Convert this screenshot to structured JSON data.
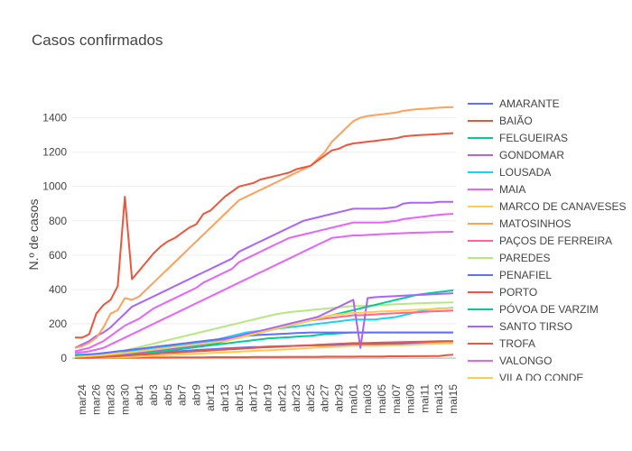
{
  "chart_data": {
    "type": "line",
    "title": "Casos confirmados",
    "xlabel": "",
    "ylabel": "N.º de casos",
    "ylim": [
      -120,
      1560
    ],
    "yticks": [
      0,
      200,
      400,
      600,
      800,
      1000,
      1200,
      1400
    ],
    "x": [
      "mar23",
      "mar24",
      "mar25",
      "mar26",
      "mar27",
      "mar28",
      "mar29",
      "mar30",
      "mar31",
      "abr1",
      "abr2",
      "abr3",
      "abr4",
      "abr5",
      "abr6",
      "abr7",
      "abr8",
      "abr9",
      "abr10",
      "abr11",
      "abr12",
      "abr13",
      "abr14",
      "abr15",
      "abr16",
      "abr17",
      "abr18",
      "abr19",
      "abr20",
      "abr21",
      "abr22",
      "abr23",
      "abr24",
      "abr25",
      "abr26",
      "abr27",
      "abr28",
      "abr29",
      "abr30",
      "mai01",
      "mai02",
      "mai03",
      "mai04",
      "mai05",
      "mai06",
      "mai07",
      "mai08",
      "mai09",
      "mai10",
      "mai11",
      "mai12",
      "mai13",
      "mai14",
      "mai15"
    ],
    "xticks": [
      "mar24",
      "mar26",
      "mar28",
      "mar30",
      "abr1",
      "abr3",
      "abr5",
      "abr7",
      "abr9",
      "abr11",
      "abr13",
      "abr15",
      "abr17",
      "abr19",
      "abr21",
      "abr23",
      "abr25",
      "abr27",
      "abr29",
      "mai01",
      "mai03",
      "mai05",
      "mai07",
      "mai09",
      "mai11",
      "mai13",
      "mai15"
    ],
    "legend_position": "right",
    "series": [
      {
        "name": "AMARANTE",
        "color": "#636efa",
        "values": [
          5,
          5,
          6,
          8,
          10,
          12,
          15,
          20,
          25,
          28,
          30,
          33,
          36,
          38,
          40,
          42,
          45,
          48,
          50,
          52,
          55,
          57,
          59,
          61,
          63,
          65,
          66,
          68,
          69,
          70,
          71,
          72,
          73,
          74,
          75,
          76,
          77,
          78,
          79,
          80,
          80,
          81,
          82,
          82,
          83,
          84,
          85,
          86,
          86,
          87,
          87,
          88,
          88,
          88
        ]
      },
      {
        "name": "BAIÃO",
        "color": "#ef553b",
        "values": [
          1,
          1,
          1,
          1,
          2,
          2,
          2,
          3,
          3,
          3,
          4,
          4,
          4,
          4,
          5,
          5,
          5,
          5,
          5,
          6,
          6,
          6,
          6,
          6,
          6,
          7,
          7,
          7,
          7,
          7,
          8,
          8,
          8,
          8,
          8,
          9,
          9,
          9,
          9,
          9,
          10,
          10,
          10,
          10,
          11,
          11,
          11,
          12,
          12,
          12,
          13,
          13,
          18,
          20
        ]
      },
      {
        "name": "FELGUEIRAS",
        "color": "#00cc96",
        "values": [
          10,
          12,
          14,
          16,
          18,
          20,
          22,
          25,
          28,
          30,
          33,
          36,
          40,
          45,
          50,
          55,
          60,
          65,
          70,
          75,
          80,
          85,
          90,
          95,
          100,
          105,
          110,
          115,
          118,
          120,
          122,
          125,
          128,
          130,
          135,
          140,
          142,
          145,
          148,
          150,
          150,
          150,
          150,
          150,
          150,
          150,
          150,
          150,
          150,
          150,
          150,
          150,
          150,
          150
        ]
      },
      {
        "name": "GONDOMAR",
        "color": "#ab63fa",
        "values": [
          60,
          80,
          100,
          130,
          150,
          180,
          220,
          260,
          300,
          320,
          340,
          360,
          380,
          400,
          420,
          440,
          460,
          480,
          500,
          520,
          540,
          560,
          580,
          620,
          640,
          660,
          680,
          700,
          720,
          740,
          760,
          780,
          800,
          810,
          820,
          830,
          840,
          850,
          860,
          870,
          870,
          870,
          870,
          870,
          875,
          880,
          900,
          905,
          905,
          905,
          905,
          910,
          910,
          910
        ]
      },
      {
        "name": "LOUSADA",
        "color": "#19d3f3",
        "values": [
          20,
          22,
          24,
          26,
          28,
          30,
          33,
          36,
          40,
          45,
          50,
          55,
          60,
          65,
          70,
          75,
          80,
          85,
          90,
          100,
          110,
          120,
          130,
          140,
          150,
          155,
          160,
          165,
          170,
          175,
          180,
          185,
          190,
          195,
          200,
          205,
          210,
          215,
          220,
          225,
          225,
          225,
          225,
          230,
          235,
          240,
          250,
          260,
          270,
          280,
          285,
          290,
          290,
          295
        ]
      },
      {
        "name": "MAIA",
        "color": "#e763fa",
        "values": [
          40,
          50,
          60,
          80,
          100,
          130,
          160,
          190,
          210,
          230,
          260,
          290,
          310,
          330,
          350,
          370,
          390,
          410,
          440,
          460,
          480,
          500,
          520,
          560,
          580,
          600,
          620,
          640,
          660,
          680,
          700,
          710,
          720,
          730,
          740,
          750,
          760,
          770,
          780,
          790,
          790,
          790,
          790,
          790,
          795,
          800,
          810,
          815,
          820,
          825,
          830,
          835,
          838,
          840
        ]
      },
      {
        "name": "MARCO DE CANAVESES",
        "color": "#fecb52",
        "values": [
          2,
          2,
          3,
          3,
          4,
          4,
          5,
          6,
          8,
          10,
          12,
          14,
          16,
          18,
          20,
          22,
          24,
          26,
          28,
          30,
          32,
          34,
          36,
          38,
          40,
          42,
          44,
          46,
          48,
          50,
          52,
          55,
          58,
          60,
          62,
          64,
          66,
          68,
          70,
          72,
          72,
          72,
          72,
          73,
          74,
          75,
          76,
          78,
          80,
          82,
          84,
          85,
          86,
          87
        ]
      },
      {
        "name": "MATOSINHOS",
        "color": "#ffa15a",
        "values": [
          60,
          70,
          90,
          120,
          180,
          260,
          280,
          350,
          340,
          360,
          400,
          440,
          480,
          520,
          560,
          600,
          640,
          680,
          720,
          760,
          800,
          840,
          880,
          920,
          940,
          960,
          980,
          1000,
          1020,
          1040,
          1060,
          1080,
          1100,
          1120,
          1160,
          1200,
          1260,
          1300,
          1340,
          1380,
          1400,
          1410,
          1415,
          1420,
          1425,
          1430,
          1440,
          1445,
          1450,
          1452,
          1455,
          1458,
          1460,
          1462
        ]
      },
      {
        "name": "PAÇOS DE FERREIRA",
        "color": "#ff6692",
        "values": [
          3,
          4,
          5,
          6,
          8,
          10,
          12,
          15,
          20,
          25,
          30,
          35,
          40,
          45,
          50,
          55,
          60,
          65,
          70,
          80,
          90,
          100,
          110,
          120,
          130,
          140,
          150,
          160,
          170,
          180,
          190,
          200,
          210,
          220,
          225,
          230,
          235,
          240,
          245,
          250,
          250,
          252,
          255,
          258,
          260,
          262,
          264,
          266,
          268,
          270,
          272,
          274,
          276,
          278
        ]
      },
      {
        "name": "PAREDES",
        "color": "#b6e880",
        "values": [
          10,
          12,
          15,
          20,
          25,
          30,
          35,
          45,
          55,
          65,
          75,
          85,
          95,
          105,
          115,
          125,
          135,
          145,
          155,
          165,
          175,
          185,
          195,
          205,
          215,
          225,
          235,
          245,
          255,
          262,
          268,
          272,
          276,
          280,
          284,
          288,
          292,
          296,
          300,
          304,
          304,
          306,
          308,
          310,
          312,
          314,
          316,
          318,
          320,
          321,
          322,
          323,
          324,
          325
        ]
      },
      {
        "name": "PENAFIEL",
        "color": "#636efa",
        "values": [
          15,
          18,
          20,
          25,
          30,
          35,
          40,
          45,
          50,
          55,
          60,
          65,
          70,
          75,
          80,
          85,
          90,
          95,
          100,
          105,
          110,
          115,
          120,
          125,
          130,
          133,
          136,
          138,
          140,
          142,
          144,
          146,
          148,
          150,
          150,
          150,
          150,
          150,
          150,
          150,
          150,
          150,
          150,
          150,
          150,
          150,
          150,
          150,
          150,
          150,
          150,
          150,
          150,
          150
        ]
      },
      {
        "name": "PORTO",
        "color": "#ef553b",
        "values": [
          120,
          120,
          140,
          260,
          310,
          340,
          420,
          940,
          460,
          510,
          560,
          610,
          650,
          680,
          700,
          730,
          760,
          780,
          840,
          860,
          900,
          940,
          970,
          1000,
          1010,
          1020,
          1040,
          1050,
          1060,
          1070,
          1080,
          1100,
          1110,
          1120,
          1150,
          1180,
          1210,
          1220,
          1240,
          1250,
          1255,
          1260,
          1265,
          1270,
          1275,
          1280,
          1290,
          1295,
          1298,
          1300,
          1302,
          1305,
          1308,
          1310
        ]
      },
      {
        "name": "PÓVOA DE VARZIM",
        "color": "#00cc96",
        "values": [
          10,
          12,
          14,
          16,
          18,
          20,
          22,
          25,
          28,
          30,
          33,
          36,
          40,
          45,
          50,
          55,
          60,
          65,
          70,
          80,
          90,
          100,
          110,
          120,
          130,
          140,
          150,
          160,
          170,
          180,
          190,
          200,
          210,
          220,
          230,
          240,
          250,
          260,
          270,
          280,
          290,
          300,
          310,
          320,
          330,
          340,
          350,
          360,
          370,
          375,
          380,
          385,
          390,
          395
        ]
      },
      {
        "name": "SANTO TIRSO",
        "color": "#ab63fa",
        "values": [
          5,
          6,
          8,
          10,
          12,
          15,
          20,
          25,
          30,
          35,
          40,
          45,
          50,
          55,
          60,
          65,
          70,
          75,
          80,
          90,
          100,
          110,
          120,
          130,
          140,
          150,
          160,
          170,
          180,
          190,
          200,
          210,
          220,
          230,
          240,
          260,
          280,
          300,
          320,
          340,
          60,
          350,
          355,
          358,
          360,
          362,
          364,
          366,
          368,
          370,
          372,
          374,
          376,
          378
        ]
      },
      {
        "name": "TROFA",
        "color": "#ef553b",
        "values": [
          3,
          4,
          5,
          6,
          8,
          10,
          12,
          15,
          18,
          20,
          22,
          25,
          28,
          30,
          32,
          35,
          38,
          40,
          42,
          45,
          48,
          50,
          52,
          55,
          58,
          60,
          62,
          64,
          66,
          68,
          70,
          72,
          74,
          76,
          78,
          80,
          82,
          84,
          86,
          88,
          88,
          89,
          90,
          91,
          92,
          93,
          94,
          95,
          96,
          97,
          98,
          99,
          100,
          100
        ]
      },
      {
        "name": "VALONGO",
        "color": "#e763fa",
        "values": [
          30,
          35,
          40,
          50,
          60,
          80,
          100,
          120,
          140,
          160,
          180,
          200,
          220,
          240,
          260,
          280,
          300,
          320,
          340,
          360,
          380,
          400,
          420,
          440,
          460,
          480,
          500,
          520,
          540,
          560,
          580,
          600,
          620,
          640,
          660,
          680,
          700,
          705,
          710,
          715,
          715,
          718,
          720,
          722,
          724,
          726,
          728,
          730,
          731,
          732,
          733,
          734,
          735,
          736
        ]
      },
      {
        "name": "VILA DO CONDE",
        "color": "#fecb52",
        "values": [
          8,
          10,
          12,
          15,
          18,
          22,
          26,
          30,
          35,
          40,
          45,
          50,
          55,
          60,
          65,
          70,
          75,
          80,
          85,
          90,
          95,
          100,
          110,
          120,
          130,
          140,
          150,
          160,
          170,
          180,
          190,
          200,
          210,
          220,
          230,
          240,
          250,
          255,
          260,
          265,
          265,
          268,
          270,
          272,
          274,
          276,
          278,
          280,
          282,
          284,
          286,
          288,
          290,
          292
        ]
      }
    ]
  }
}
